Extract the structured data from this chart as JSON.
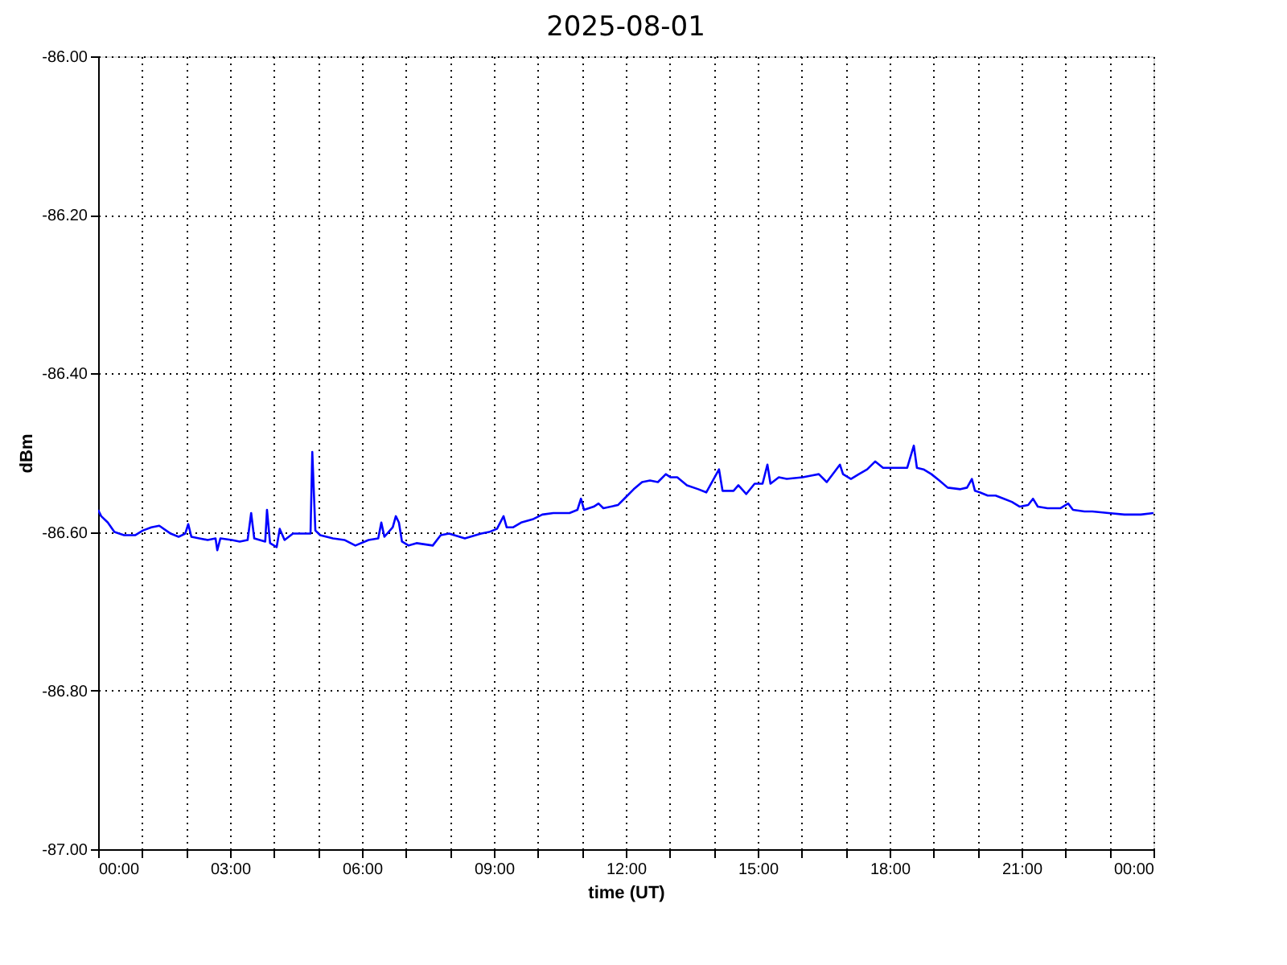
{
  "chart_data": {
    "type": "line",
    "title": "2025-08-01",
    "xlabel": "time (UT)",
    "ylabel": "dBm",
    "xlim": [
      0,
      24
    ],
    "ylim": [
      -87.0,
      -86.0
    ],
    "xticks": [
      {
        "value": 0,
        "label": "00:00"
      },
      {
        "value": 1,
        "label": null
      },
      {
        "value": 2,
        "label": null
      },
      {
        "value": 3,
        "label": "03:00"
      },
      {
        "value": 4,
        "label": null
      },
      {
        "value": 5,
        "label": null
      },
      {
        "value": 6,
        "label": "06:00"
      },
      {
        "value": 7,
        "label": null
      },
      {
        "value": 8,
        "label": null
      },
      {
        "value": 9,
        "label": "09:00"
      },
      {
        "value": 10,
        "label": null
      },
      {
        "value": 11,
        "label": null
      },
      {
        "value": 12,
        "label": "12:00"
      },
      {
        "value": 13,
        "label": null
      },
      {
        "value": 14,
        "label": null
      },
      {
        "value": 15,
        "label": "15:00"
      },
      {
        "value": 16,
        "label": null
      },
      {
        "value": 17,
        "label": null
      },
      {
        "value": 18,
        "label": "18:00"
      },
      {
        "value": 19,
        "label": null
      },
      {
        "value": 20,
        "label": null
      },
      {
        "value": 21,
        "label": "21:00"
      },
      {
        "value": 22,
        "label": null
      },
      {
        "value": 23,
        "label": null
      },
      {
        "value": 24,
        "label": "00:00"
      }
    ],
    "yticks": [
      {
        "value": -87.0,
        "label": "-87.00"
      },
      {
        "value": -86.8,
        "label": "-86.80"
      },
      {
        "value": -86.6,
        "label": "-86.60"
      },
      {
        "value": -86.4,
        "label": "-86.40"
      },
      {
        "value": -86.2,
        "label": "-86.20"
      },
      {
        "value": -86.0,
        "label": "-86.00"
      }
    ],
    "grid": true,
    "line_style": "solid",
    "marker": "none",
    "series": [
      {
        "color": "#0000ff",
        "x": [
          0,
          0.07,
          0.22,
          0.37,
          0.59,
          0.84,
          1.02,
          1.21,
          1.39,
          1.65,
          1.83,
          1.98,
          2.05,
          2.12,
          2.3,
          2.49,
          2.67,
          2.71,
          2.78,
          3.04,
          3.22,
          3.4,
          3.48,
          3.55,
          3.8,
          3.84,
          3.91,
          4.06,
          4.13,
          4.24,
          4.43,
          4.68,
          4.83,
          4.87,
          4.94,
          5.05,
          5.34,
          5.6,
          5.85,
          6.15,
          6.37,
          6.44,
          6.51,
          6.7,
          6.77,
          6.84,
          6.91,
          7.06,
          7.24,
          7.61,
          7.79,
          7.98,
          8.34,
          8.71,
          8.89,
          9.07,
          9.22,
          9.29,
          9.44,
          9.62,
          9.88,
          10.1,
          10.35,
          10.72,
          10.9,
          10.98,
          11.05,
          11.27,
          11.38,
          11.49,
          11.82,
          12.0,
          12.18,
          12.37,
          12.55,
          12.73,
          12.91,
          13.02,
          13.17,
          13.39,
          13.65,
          13.83,
          14.12,
          14.2,
          14.45,
          14.56,
          14.74,
          14.93,
          15.11,
          15.22,
          15.29,
          15.48,
          15.66,
          16.02,
          16.21,
          16.39,
          16.57,
          16.76,
          16.87,
          16.94,
          17.12,
          17.3,
          17.49,
          17.67,
          17.85,
          18.21,
          18.4,
          18.55,
          18.62,
          18.77,
          18.95,
          19.13,
          19.32,
          19.61,
          19.76,
          19.87,
          19.94,
          20.05,
          20.23,
          20.41,
          20.6,
          20.78,
          20.96,
          21.15,
          21.26,
          21.37,
          21.59,
          21.88,
          22.06,
          22.17,
          22.43,
          22.61,
          22.98,
          23.34,
          23.71,
          24.0
        ],
        "values": [
          -86.572,
          -86.58,
          -86.588,
          -86.6,
          -86.604,
          -86.604,
          -86.598,
          -86.594,
          -86.592,
          -86.602,
          -86.606,
          -86.602,
          -86.59,
          -86.606,
          -86.608,
          -86.61,
          -86.608,
          -86.623,
          -86.608,
          -86.61,
          -86.612,
          -86.61,
          -86.576,
          -86.608,
          -86.612,
          -86.572,
          -86.614,
          -86.619,
          -86.596,
          -86.61,
          -86.602,
          -86.602,
          -86.602,
          -86.499,
          -86.598,
          -86.604,
          -86.608,
          -86.61,
          -86.617,
          -86.61,
          -86.608,
          -86.588,
          -86.606,
          -86.594,
          -86.58,
          -86.588,
          -86.612,
          -86.617,
          -86.614,
          -86.617,
          -86.604,
          -86.602,
          -86.608,
          -86.602,
          -86.6,
          -86.596,
          -86.58,
          -86.594,
          -86.594,
          -86.588,
          -86.584,
          -86.578,
          -86.576,
          -86.576,
          -86.572,
          -86.558,
          -86.572,
          -86.568,
          -86.564,
          -86.57,
          -86.566,
          -86.556,
          -86.546,
          -86.537,
          -86.535,
          -86.537,
          -86.527,
          -86.531,
          -86.531,
          -86.541,
          -86.546,
          -86.55,
          -86.521,
          -86.548,
          -86.548,
          -86.541,
          -86.552,
          -86.539,
          -86.539,
          -86.515,
          -86.539,
          -86.531,
          -86.533,
          -86.531,
          -86.529,
          -86.527,
          -86.537,
          -86.523,
          -86.515,
          -86.527,
          -86.533,
          -86.527,
          -86.521,
          -86.511,
          -86.519,
          -86.519,
          -86.519,
          -86.491,
          -86.519,
          -86.521,
          -86.527,
          -86.535,
          -86.544,
          -86.546,
          -86.544,
          -86.533,
          -86.548,
          -86.55,
          -86.554,
          -86.554,
          -86.558,
          -86.562,
          -86.568,
          -86.566,
          -86.558,
          -86.568,
          -86.57,
          -86.57,
          -86.564,
          -86.572,
          -86.574,
          -86.574,
          -86.576,
          -86.578,
          -86.578,
          -86.576
        ]
      }
    ]
  }
}
